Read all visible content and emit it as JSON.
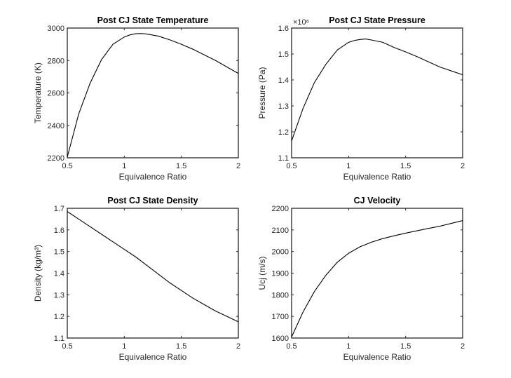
{
  "chart_data": [
    {
      "type": "line",
      "title": "Post CJ State Temperature",
      "xlabel": "Equivalence Ratio",
      "ylabel": "Temperature (K)",
      "xlim": [
        0.5,
        2
      ],
      "ylim": [
        2200,
        3000
      ],
      "xticks": [
        "0.5",
        "1",
        "1.5",
        "2"
      ],
      "yticks": [
        "2200",
        "2400",
        "2600",
        "2800",
        "3000"
      ],
      "exponent_label": "",
      "grid": false,
      "series": [
        {
          "x": [
            0.5,
            0.6,
            0.7,
            0.8,
            0.9,
            1.0,
            1.05,
            1.1,
            1.15,
            1.2,
            1.3,
            1.4,
            1.5,
            1.6,
            1.7,
            1.8,
            1.9,
            2.0
          ],
          "y": [
            2205,
            2470,
            2660,
            2805,
            2900,
            2945,
            2958,
            2965,
            2966,
            2963,
            2950,
            2927,
            2900,
            2870,
            2835,
            2800,
            2760,
            2720
          ]
        }
      ]
    },
    {
      "type": "line",
      "title": "Post CJ State Pressure",
      "xlabel": "Equivalence Ratio",
      "ylabel": "Pressure (Pa)",
      "xlim": [
        0.5,
        2
      ],
      "ylim": [
        1.1,
        1.6
      ],
      "xticks": [
        "0.5",
        "1",
        "1.5",
        "2"
      ],
      "yticks": [
        "1.1",
        "1.2",
        "1.3",
        "1.4",
        "1.5",
        "1.6"
      ],
      "exponent_label": "×10⁶",
      "grid": false,
      "series": [
        {
          "x": [
            0.5,
            0.6,
            0.7,
            0.8,
            0.9,
            1.0,
            1.05,
            1.1,
            1.15,
            1.2,
            1.3,
            1.4,
            1.5,
            1.6,
            1.7,
            1.8,
            1.9,
            2.0
          ],
          "y": [
            1.165,
            1.29,
            1.39,
            1.46,
            1.515,
            1.545,
            1.552,
            1.556,
            1.558,
            1.554,
            1.545,
            1.525,
            1.508,
            1.49,
            1.47,
            1.45,
            1.435,
            1.42
          ]
        }
      ]
    },
    {
      "type": "line",
      "title": "Post CJ State Density",
      "xlabel": "Equivalence Ratio",
      "ylabel": "Density (kg/m³)",
      "xlim": [
        0.5,
        2
      ],
      "ylim": [
        1.1,
        1.7
      ],
      "xticks": [
        "0.5",
        "1",
        "1.5",
        "2"
      ],
      "yticks": [
        "1.1",
        "1.2",
        "1.3",
        "1.4",
        "1.5",
        "1.6",
        "1.7"
      ],
      "exponent_label": "",
      "grid": false,
      "series": [
        {
          "x": [
            0.5,
            0.6,
            0.7,
            0.8,
            0.9,
            1.0,
            1.1,
            1.2,
            1.3,
            1.4,
            1.5,
            1.6,
            1.7,
            1.8,
            1.9,
            2.0
          ],
          "y": [
            1.685,
            1.65,
            1.615,
            1.58,
            1.545,
            1.51,
            1.475,
            1.435,
            1.395,
            1.355,
            1.32,
            1.285,
            1.255,
            1.225,
            1.2,
            1.175
          ]
        }
      ]
    },
    {
      "type": "line",
      "title": "CJ Velocity",
      "xlabel": "Equivalence Ratio",
      "ylabel": "Ucj (m/s)",
      "xlim": [
        0.5,
        2
      ],
      "ylim": [
        1600,
        2200
      ],
      "xticks": [
        "0.5",
        "1",
        "1.5",
        "2"
      ],
      "yticks": [
        "1600",
        "1700",
        "1800",
        "1900",
        "2000",
        "2100",
        "2200"
      ],
      "exponent_label": "",
      "grid": false,
      "series": [
        {
          "x": [
            0.5,
            0.6,
            0.7,
            0.8,
            0.9,
            1.0,
            1.1,
            1.2,
            1.3,
            1.4,
            1.5,
            1.6,
            1.7,
            1.8,
            1.9,
            2.0
          ],
          "y": [
            1605,
            1720,
            1815,
            1890,
            1950,
            1992,
            2022,
            2043,
            2060,
            2073,
            2085,
            2096,
            2107,
            2117,
            2130,
            2143
          ]
        }
      ]
    }
  ]
}
